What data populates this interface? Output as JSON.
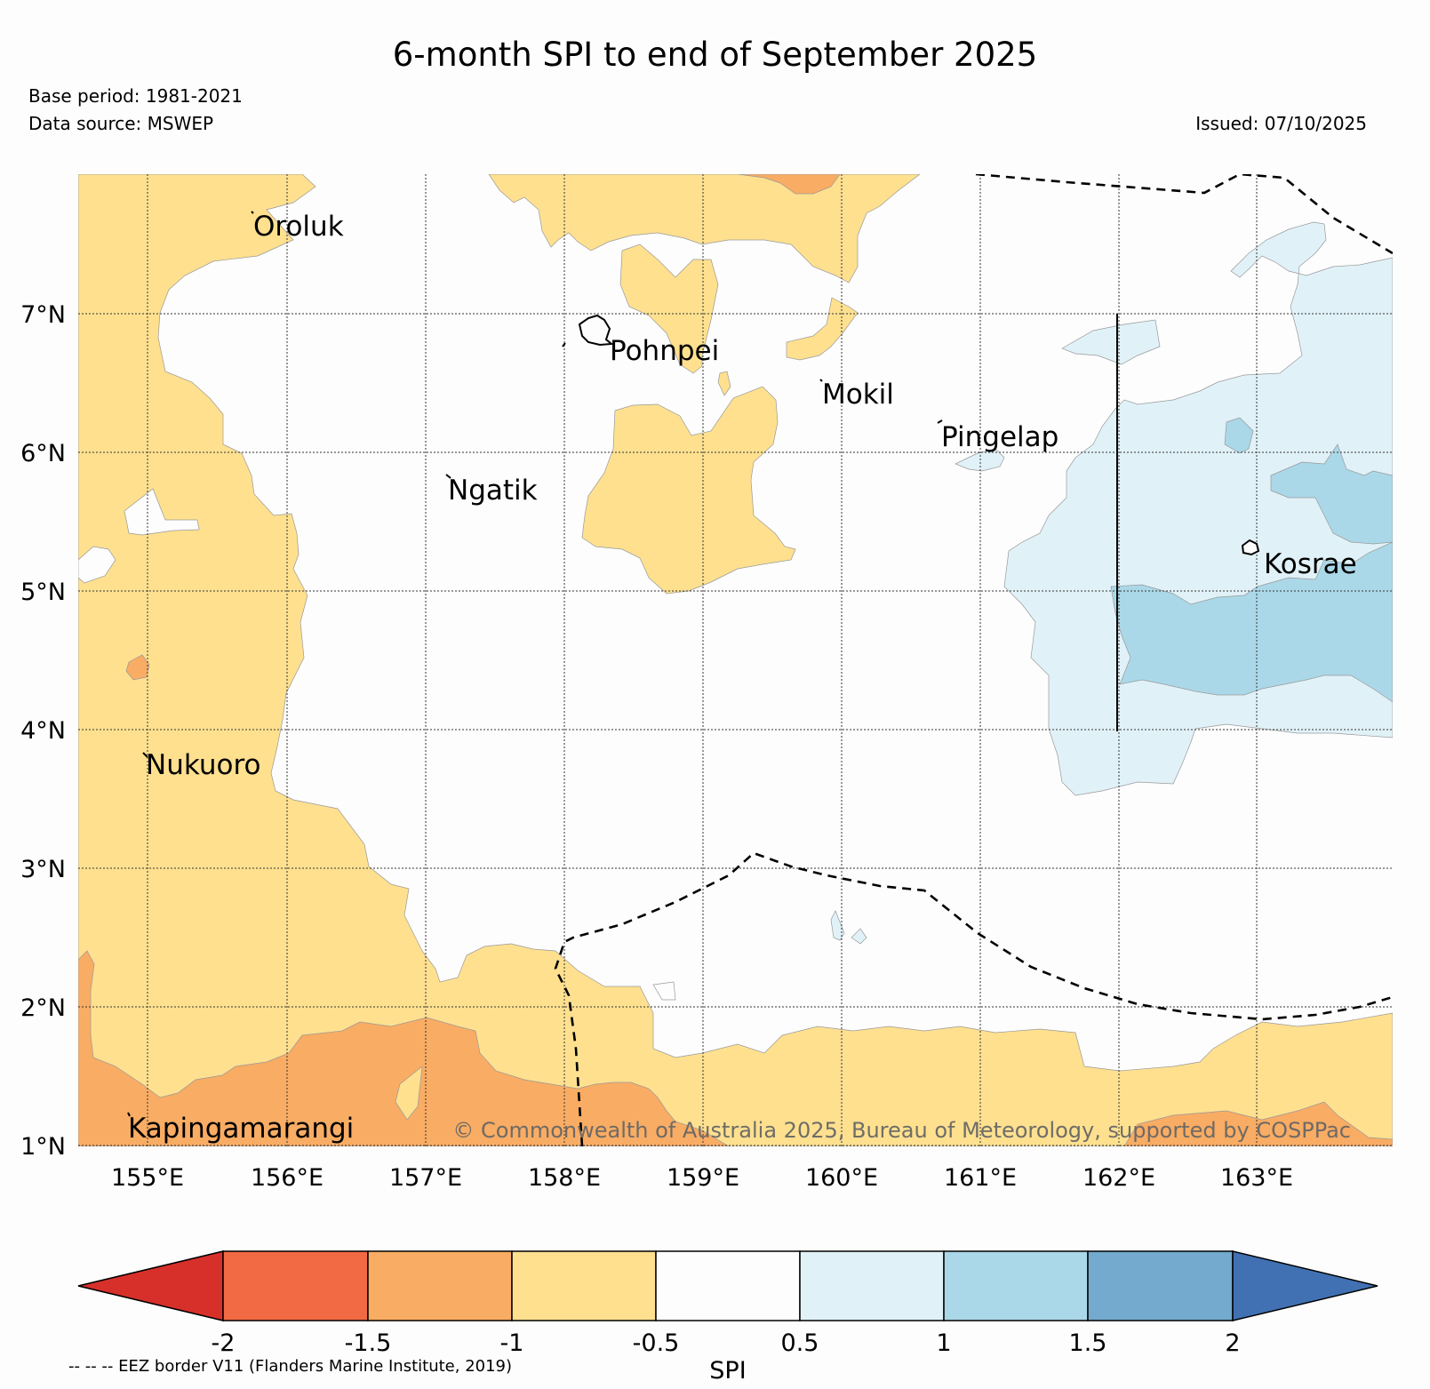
{
  "title": "6-month SPI to end of September 2025",
  "base_period": "Base period: 1981-2021",
  "data_source": "Data source: MSWEP",
  "issued": "Issued: 07/10/2025",
  "map": {
    "x_ticks": [
      "155°E",
      "156°E",
      "157°E",
      "158°E",
      "159°E",
      "160°E",
      "161°E",
      "162°E",
      "163°E"
    ],
    "y_ticks": [
      "7°N",
      "6°N",
      "5°N",
      "4°N",
      "3°N",
      "2°N",
      "1°N"
    ],
    "places": [
      {
        "name": "Oroluk"
      },
      {
        "name": "Pohnpei"
      },
      {
        "name": "Mokil"
      },
      {
        "name": "Pingelap"
      },
      {
        "name": "Ngatik"
      },
      {
        "name": "Kosrae"
      },
      {
        "name": "Nukuoro"
      },
      {
        "name": "Kapingamarangi"
      }
    ],
    "copyright": "© Commonwealth of Australia 2025, Bureau of Meteorology, supported by COSPPac"
  },
  "colorbar": {
    "label": "SPI",
    "ticks": [
      "-2",
      "-1.5",
      "-1",
      "-0.5",
      "0.5",
      "1",
      "1.5",
      "2"
    ],
    "colors": {
      "lt_-2": "#d7302b",
      "-2_-1.5": "#f16a44",
      "-1.5_-1": "#f9ac63",
      "-1_-0.5": "#fee08f",
      "-0.5_0.5": "#fdfdfd",
      "0.5_1": "#e0f2f8",
      "1_1.5": "#abd8e8",
      "1.5_2": "#73aace",
      "gt_2": "#4271b3"
    }
  },
  "eez_note": "-- -- -- EEZ border V11 (Flanders Marine Institute, 2019)"
}
